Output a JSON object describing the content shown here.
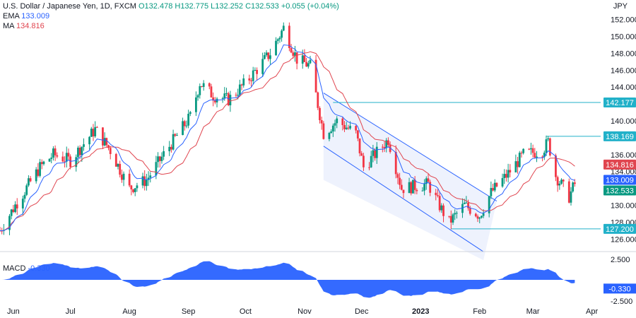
{
  "legend": {
    "symbol": "U.S. Dollar / Japanese Yen, 1D, FXCM",
    "ohlc": "O132.478 H132.775 L132.252 C132.533 +0.055 (+0.04%)",
    "ema_label": "EMA",
    "ema_value": "133.009",
    "ma_label": "MA",
    "ma_value": "134.816"
  },
  "currency": "JPY",
  "macd": {
    "label": "MACD",
    "value": "-0.330"
  },
  "colors": {
    "up": "#089981",
    "down": "#f23645",
    "ema": "#2962ff",
    "ma": "#e0454f",
    "hline": "#22b1c9",
    "channel": "#e8eefc",
    "macd": "#2962ff"
  },
  "chart_data": {
    "type": "candlestick",
    "title": "U.S. Dollar / Japanese Yen, 1D, FXCM",
    "ylabel": "JPY",
    "ylim": [
      124.6,
      152.8
    ],
    "x_ticks": [
      "Jun",
      "Jul",
      "Aug",
      "Sep",
      "Oct",
      "Nov",
      "Dec",
      "2023",
      "Feb",
      "Mar",
      "Apr"
    ],
    "y_ticks": [
      126,
      128,
      130,
      132,
      134,
      136,
      138,
      140,
      142,
      144,
      146,
      148,
      150,
      152
    ],
    "horizontal_levels": [
      142.177,
      138.169,
      127.2
    ],
    "price_badges": [
      {
        "value": "142.177",
        "color": "#22b1c9"
      },
      {
        "value": "138.169",
        "color": "#22b1c9"
      },
      {
        "value": "134.816",
        "color": "#e0454f"
      },
      {
        "value": "133.009",
        "color": "#2962ff"
      },
      {
        "value": "132.533",
        "color": "#089981"
      },
      {
        "value": "127.200",
        "color": "#22b1c9"
      }
    ],
    "series": [
      {
        "name": "EMA",
        "last": 133.009
      },
      {
        "name": "MA",
        "last": 134.816
      }
    ],
    "macd": {
      "name": "MACD",
      "ylim": [
        -2.5,
        2.5
      ],
      "y_ticks": [
        "2.500",
        "-2.500"
      ],
      "last": -0.33
    },
    "price_path": [
      {
        "date": "2022-05-25",
        "close": 127.0
      },
      {
        "date": "2022-06-02",
        "close": 130.0
      },
      {
        "date": "2022-06-15",
        "close": 134.5
      },
      {
        "date": "2022-06-22",
        "close": 136.0
      },
      {
        "date": "2022-07-01",
        "close": 135.3
      },
      {
        "date": "2022-07-14",
        "close": 139.0
      },
      {
        "date": "2022-07-22",
        "close": 136.5
      },
      {
        "date": "2022-08-01",
        "close": 132.0
      },
      {
        "date": "2022-08-10",
        "close": 133.0
      },
      {
        "date": "2022-08-22",
        "close": 137.0
      },
      {
        "date": "2022-09-02",
        "close": 140.5
      },
      {
        "date": "2022-09-07",
        "close": 144.5
      },
      {
        "date": "2022-09-14",
        "close": 143.0
      },
      {
        "date": "2022-09-22",
        "close": 142.5
      },
      {
        "date": "2022-10-01",
        "close": 144.5
      },
      {
        "date": "2022-10-14",
        "close": 148.0
      },
      {
        "date": "2022-10-21",
        "close": 151.0
      },
      {
        "date": "2022-10-28",
        "close": 147.3
      },
      {
        "date": "2022-11-04",
        "close": 146.5
      },
      {
        "date": "2022-11-11",
        "close": 138.5
      },
      {
        "date": "2022-11-18",
        "close": 140.0
      },
      {
        "date": "2022-11-28",
        "close": 138.5
      },
      {
        "date": "2022-12-02",
        "close": 134.5
      },
      {
        "date": "2022-12-15",
        "close": 137.8
      },
      {
        "date": "2022-12-22",
        "close": 132.0
      },
      {
        "date": "2023-01-05",
        "close": 132.5
      },
      {
        "date": "2023-01-12",
        "close": 129.5
      },
      {
        "date": "2023-01-16",
        "close": 128.0
      },
      {
        "date": "2023-01-24",
        "close": 130.0
      },
      {
        "date": "2023-02-01",
        "close": 128.8
      },
      {
        "date": "2023-02-07",
        "close": 131.5
      },
      {
        "date": "2023-02-15",
        "close": 133.5
      },
      {
        "date": "2023-02-24",
        "close": 136.0
      },
      {
        "date": "2023-03-06",
        "close": 136.5
      },
      {
        "date": "2023-03-09",
        "close": 137.5
      },
      {
        "date": "2023-03-13",
        "close": 133.5
      },
      {
        "date": "2023-03-20",
        "close": 131.0
      },
      {
        "date": "2023-03-23",
        "close": 132.533
      }
    ]
  }
}
